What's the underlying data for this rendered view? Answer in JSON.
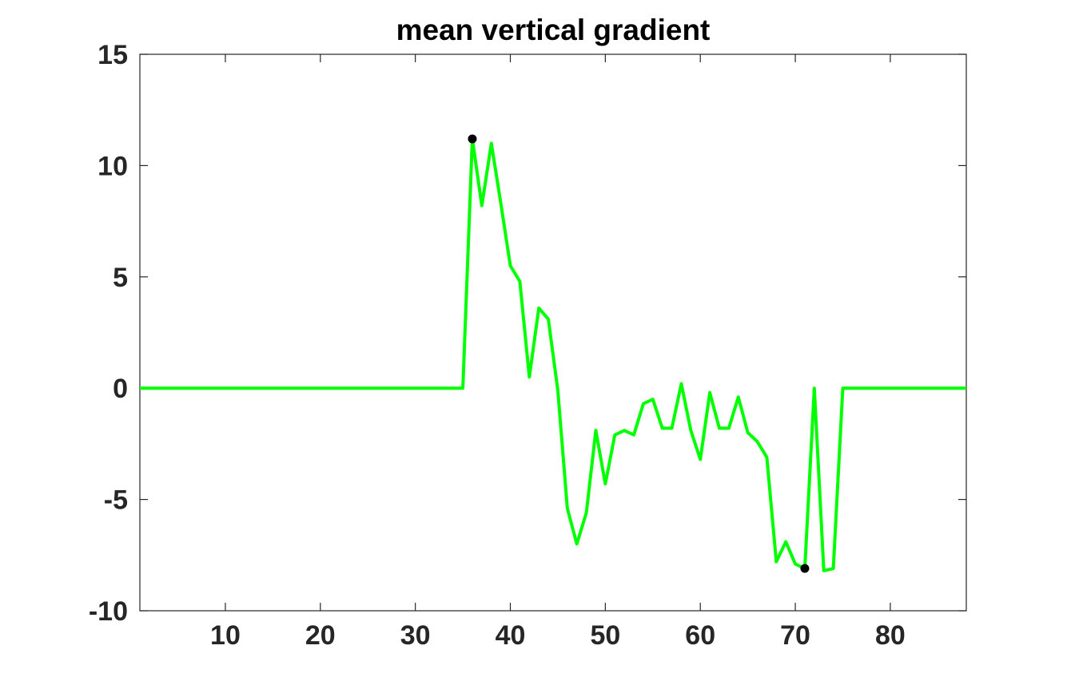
{
  "chart_data": {
    "type": "line",
    "title": "mean vertical gradient",
    "xlabel": "",
    "ylabel": "",
    "xlim": [
      1,
      88
    ],
    "ylim": [
      -10,
      15
    ],
    "xticks": [
      10,
      20,
      30,
      40,
      50,
      60,
      70,
      80
    ],
    "yticks": [
      -10,
      -5,
      0,
      5,
      10,
      15
    ],
    "grid": false,
    "series": [
      {
        "color": "#00ff00",
        "x": [
          1,
          2,
          3,
          4,
          5,
          6,
          7,
          8,
          9,
          10,
          11,
          12,
          13,
          14,
          15,
          16,
          17,
          18,
          19,
          20,
          21,
          22,
          23,
          24,
          25,
          26,
          27,
          28,
          29,
          30,
          31,
          32,
          33,
          34,
          35,
          36,
          37,
          38,
          39,
          40,
          41,
          42,
          43,
          44,
          45,
          46,
          47,
          48,
          49,
          50,
          51,
          52,
          53,
          54,
          55,
          56,
          57,
          58,
          59,
          60,
          61,
          62,
          63,
          64,
          65,
          66,
          67,
          68,
          69,
          70,
          71,
          72,
          73,
          74,
          75,
          76,
          77,
          78,
          79,
          80,
          81,
          82,
          83,
          84,
          85,
          86,
          87,
          88
        ],
        "y": [
          0,
          0,
          0,
          0,
          0,
          0,
          0,
          0,
          0,
          0,
          0,
          0,
          0,
          0,
          0,
          0,
          0,
          0,
          0,
          0,
          0,
          0,
          0,
          0,
          0,
          0,
          0,
          0,
          0,
          0,
          0,
          0,
          0,
          0,
          0,
          11.2,
          8.2,
          11.0,
          8.3,
          5.5,
          4.8,
          0.5,
          3.6,
          3.1,
          -0.1,
          -5.4,
          -7.0,
          -5.6,
          -1.9,
          -4.3,
          -2.1,
          -1.9,
          -2.1,
          -0.7,
          -0.5,
          -1.8,
          -1.8,
          0.2,
          -1.9,
          -3.2,
          -0.2,
          -1.8,
          -1.8,
          -0.4,
          -2.0,
          -2.4,
          -3.1,
          -7.8,
          -6.9,
          -7.9,
          -8.1,
          0,
          -8.2,
          -8.1,
          0,
          0,
          0,
          0,
          0,
          0,
          0,
          0,
          0,
          0,
          0,
          0,
          0,
          0
        ]
      }
    ],
    "markers": [
      {
        "x": 36,
        "y": 11.2,
        "color": "#000000"
      },
      {
        "x": 71,
        "y": -8.1,
        "color": "#000000"
      }
    ]
  }
}
